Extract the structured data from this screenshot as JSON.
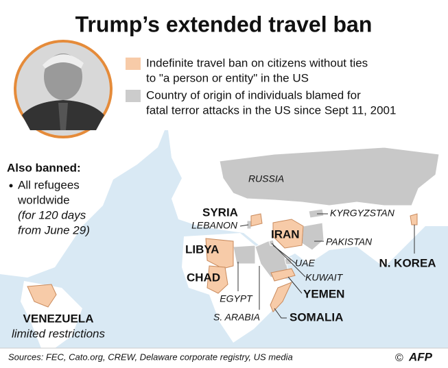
{
  "title": "Trump’s extended travel ban",
  "legend": [
    {
      "lines": [
        "Indefinite travel ban on citizens without ties",
        "to \"a person or entity\" in the US"
      ],
      "color": "#f7cba8"
    },
    {
      "lines": [
        "Country of origin of individuals blamed for",
        "fatal terror attacks in the US since Sept 11, 2001"
      ],
      "color": "#cccccc"
    }
  ],
  "also_banned": {
    "heading": "Also banned:",
    "item_lines": [
      "All refugees",
      "worldwide"
    ],
    "note_lines": [
      "(for 120 days",
      "from June 29)"
    ]
  },
  "map_labels": [
    {
      "text": "RUSSIA",
      "banned": false
    },
    {
      "text": "SYRIA",
      "banned": true
    },
    {
      "text": "LEBANON",
      "banned": false
    },
    {
      "text": "IRAN",
      "banned": true
    },
    {
      "text": "LIBYA",
      "banned": true
    },
    {
      "text": "CHAD",
      "banned": true
    },
    {
      "text": "EGYPT",
      "banned": false
    },
    {
      "text": "S. ARABIA",
      "banned": false
    },
    {
      "text": "UAE",
      "banned": false
    },
    {
      "text": "KUWAIT",
      "banned": false
    },
    {
      "text": "YEMEN",
      "banned": true
    },
    {
      "text": "SOMALIA",
      "banned": true
    },
    {
      "text": "KYRGYZSTAN",
      "banned": false
    },
    {
      "text": "PAKISTAN",
      "banned": false
    },
    {
      "text": "N. KOREA",
      "banned": true
    }
  ],
  "venezuela": {
    "name": "VENEZUELA",
    "note": "limited restrictions"
  },
  "source": "Sources: FEC, Cato.org, CREW, Delaware corporate registry, US media",
  "copyright": "©",
  "credit": "AFP"
}
